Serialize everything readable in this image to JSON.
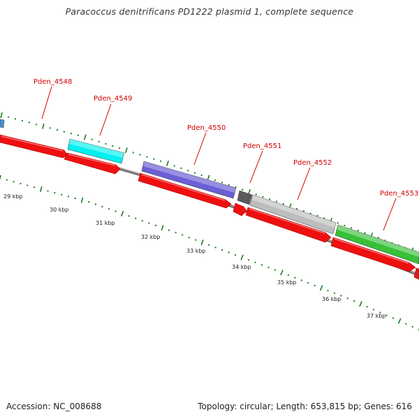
{
  "title": "Paracoccus denitrificans PD1222 plasmid 1, complete sequence",
  "footer": {
    "accession": "Accession: NC_008688",
    "info": "Topology: circular; Length: 653,815 bp; Genes: 616"
  },
  "colors": {
    "label": "#d40000",
    "tick": "#1e7d1e",
    "backbone": "#7a7a7a",
    "red_feature": "#ee1010"
  },
  "scale_labels": [
    "29 kbp",
    "30 kbp",
    "31 kbp",
    "32 kbp",
    "33 kbp",
    "34 kbp",
    "35 kbp",
    "36 kbp",
    "37 kbp"
  ],
  "genes": [
    {
      "name": "Pden_4548",
      "color": "#4a8fd0",
      "strand": "+"
    },
    {
      "name": "Pden_4549",
      "color": "#00f0f0",
      "strand": "+"
    },
    {
      "name": "Pden_4550",
      "color": "#6b5fd6",
      "strand": "+"
    },
    {
      "name": "Pden_4551",
      "color": "#5a5a5a",
      "strand": "+"
    },
    {
      "name": "Pden_4552",
      "color": "#bdbdbd",
      "strand": "+"
    },
    {
      "name": "Pden_4553",
      "color": "#38c038",
      "strand": "+"
    }
  ]
}
